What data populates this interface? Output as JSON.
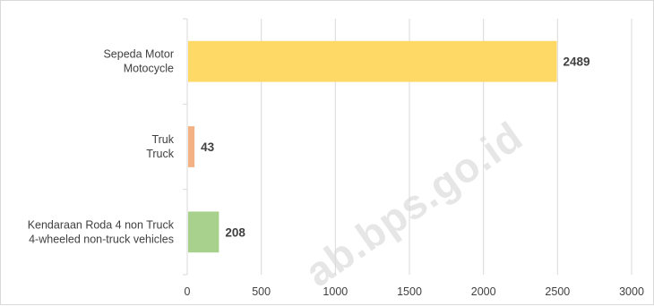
{
  "watermark": "ab.bps.go.id",
  "chart_data": {
    "type": "bar",
    "orientation": "horizontal",
    "categories": [
      [
        "Sepeda Motor",
        "Motocycle"
      ],
      [
        "Truk",
        "Truck"
      ],
      [
        "Kendaraan Roda 4 non Truck",
        "4-wheeled non-truck vehicles"
      ]
    ],
    "values": [
      2489,
      43,
      208
    ],
    "data_labels": [
      "2489",
      "43",
      "208"
    ],
    "bar_colors": [
      "#FFD966",
      "#F4B183",
      "#A9D18E"
    ],
    "xlim": [
      0,
      3000
    ],
    "x_ticks": [
      0,
      500,
      1000,
      1500,
      2000,
      2500,
      3000
    ],
    "grid": "vertical",
    "legend": "none"
  }
}
